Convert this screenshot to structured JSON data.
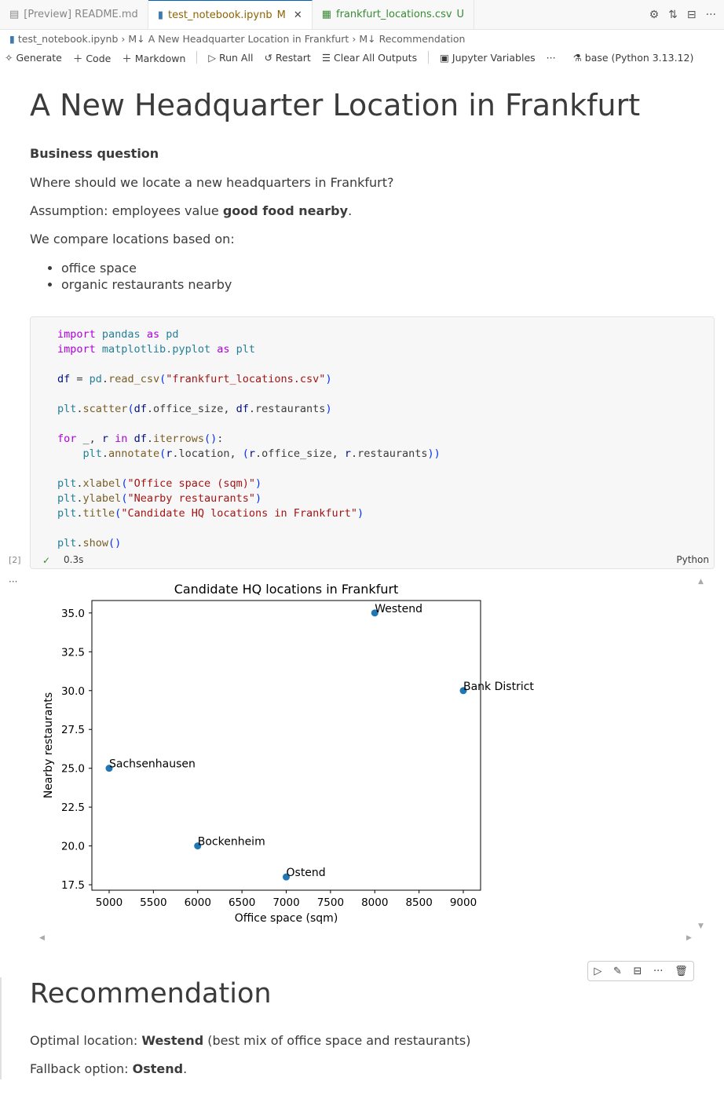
{
  "tabs": [
    {
      "label": "[Preview] README.md",
      "badge": ""
    },
    {
      "label": "test_notebook.ipynb",
      "badge": "M"
    },
    {
      "label": "frankfurt_locations.csv",
      "badge": "U"
    }
  ],
  "breadcrumb": [
    "test_notebook.ipynb",
    "A New Headquarter Location in Frankfurt",
    "Recommendation"
  ],
  "toolbar": {
    "generate": "Generate",
    "code": "Code",
    "markdown": "Markdown",
    "run_all": "Run All",
    "restart": "Restart",
    "clear": "Clear All Outputs",
    "variables": "Jupyter Variables",
    "more": "···",
    "kernel": "base (Python 3.13.12)"
  },
  "md1": {
    "title": "A New Headquarter Location in Frankfurt",
    "subtitle": "Business question",
    "q": "Where should we locate a new headquarters in Frankfurt?",
    "a_pre": "Assumption: employees value ",
    "a_bold": "good food nearby",
    "a_post": ".",
    "compare": "We compare locations based on:",
    "bullets": [
      "office space",
      "organic restaurants nearby"
    ]
  },
  "cell": {
    "exec": "[2]",
    "time": "0.3s",
    "lang": "Python",
    "code": [
      [
        [
          "import",
          "kw"
        ],
        [
          " pandas ",
          "mod"
        ],
        [
          "as",
          "kw"
        ],
        [
          " pd",
          "mod"
        ]
      ],
      [
        [
          "import",
          "kw"
        ],
        [
          " matplotlib.pyplot ",
          "mod"
        ],
        [
          "as",
          "kw"
        ],
        [
          " plt",
          "mod"
        ]
      ],
      [],
      [
        [
          "df",
          ""
        ],
        [
          " = ",
          "pl"
        ],
        [
          "pd",
          "mod"
        ],
        [
          ".",
          "pl"
        ],
        [
          "read_csv",
          "fn"
        ],
        [
          "(",
          "br"
        ],
        [
          "\"frankfurt_locations.csv\"",
          "str"
        ],
        [
          ")",
          "br"
        ]
      ],
      [],
      [
        [
          "plt",
          "mod"
        ],
        [
          ".",
          "pl"
        ],
        [
          "scatter",
          "fn"
        ],
        [
          "(",
          "br"
        ],
        [
          "df",
          ""
        ],
        [
          ".office_size, ",
          "pl"
        ],
        [
          "df",
          ""
        ],
        [
          ".restaurants",
          "pl"
        ],
        [
          ")",
          "br"
        ]
      ],
      [],
      [
        [
          "for",
          "kw"
        ],
        [
          " _, ",
          "pl"
        ],
        [
          "r",
          ""
        ],
        [
          " in ",
          "kw"
        ],
        [
          "df",
          ""
        ],
        [
          ".",
          "pl"
        ],
        [
          "iterrows",
          "fn"
        ],
        [
          "()",
          "br"
        ],
        [
          ":",
          "pl"
        ]
      ],
      [
        [
          "    plt",
          "mod"
        ],
        [
          ".",
          "pl"
        ],
        [
          "annotate",
          "fn"
        ],
        [
          "(",
          "br"
        ],
        [
          "r",
          ""
        ],
        [
          ".location, ",
          "pl"
        ],
        [
          "(",
          "br"
        ],
        [
          "r",
          ""
        ],
        [
          ".office_size, ",
          "pl"
        ],
        [
          "r",
          ""
        ],
        [
          ".restaurants",
          "pl"
        ],
        [
          "))",
          "br"
        ]
      ],
      [],
      [
        [
          "plt",
          "mod"
        ],
        [
          ".",
          "pl"
        ],
        [
          "xlabel",
          "fn"
        ],
        [
          "(",
          "br"
        ],
        [
          "\"Office space (sqm)\"",
          "str"
        ],
        [
          ")",
          "br"
        ]
      ],
      [
        [
          "plt",
          "mod"
        ],
        [
          ".",
          "pl"
        ],
        [
          "ylabel",
          "fn"
        ],
        [
          "(",
          "br"
        ],
        [
          "\"Nearby restaurants\"",
          "str"
        ],
        [
          ")",
          "br"
        ]
      ],
      [
        [
          "plt",
          "mod"
        ],
        [
          ".",
          "pl"
        ],
        [
          "title",
          "fn"
        ],
        [
          "(",
          "br"
        ],
        [
          "\"Candidate HQ locations in Frankfurt\"",
          "str"
        ],
        [
          ")",
          "br"
        ]
      ],
      [],
      [
        [
          "plt",
          "mod"
        ],
        [
          ".",
          "pl"
        ],
        [
          "show",
          "fn"
        ],
        [
          "()",
          "br"
        ]
      ]
    ]
  },
  "chart_data": {
    "type": "scatter",
    "title": "Candidate HQ locations in Frankfurt",
    "xlabel": "Office space (sqm)",
    "ylabel": "Nearby restaurants",
    "xlim": [
      4805,
      9195
    ],
    "ylim": [
      17.15,
      35.8
    ],
    "xticks": [
      5000,
      5500,
      6000,
      6500,
      7000,
      7500,
      8000,
      8500,
      9000
    ],
    "yticks": [
      "17.5",
      "20.0",
      "22.5",
      "25.0",
      "27.5",
      "30.0",
      "32.5",
      "35.0"
    ],
    "points": [
      {
        "label": "Sachsenhausen",
        "x": 5000,
        "y": 25
      },
      {
        "label": "Bockenheim",
        "x": 6000,
        "y": 20
      },
      {
        "label": "Ostend",
        "x": 7000,
        "y": 18
      },
      {
        "label": "Westend",
        "x": 8000,
        "y": 35
      },
      {
        "label": "Bank District",
        "x": 9000,
        "y": 30
      }
    ],
    "color": "#1f77b4",
    "grid": false
  },
  "md2": {
    "title": "Recommendation",
    "opt_pre": "Optimal location: ",
    "opt_bold": "Westend",
    "opt_post": " (best mix of office space and restaurants)",
    "fb_pre": "Fallback option: ",
    "fb_bold": "Ostend",
    "fb_post": "."
  }
}
